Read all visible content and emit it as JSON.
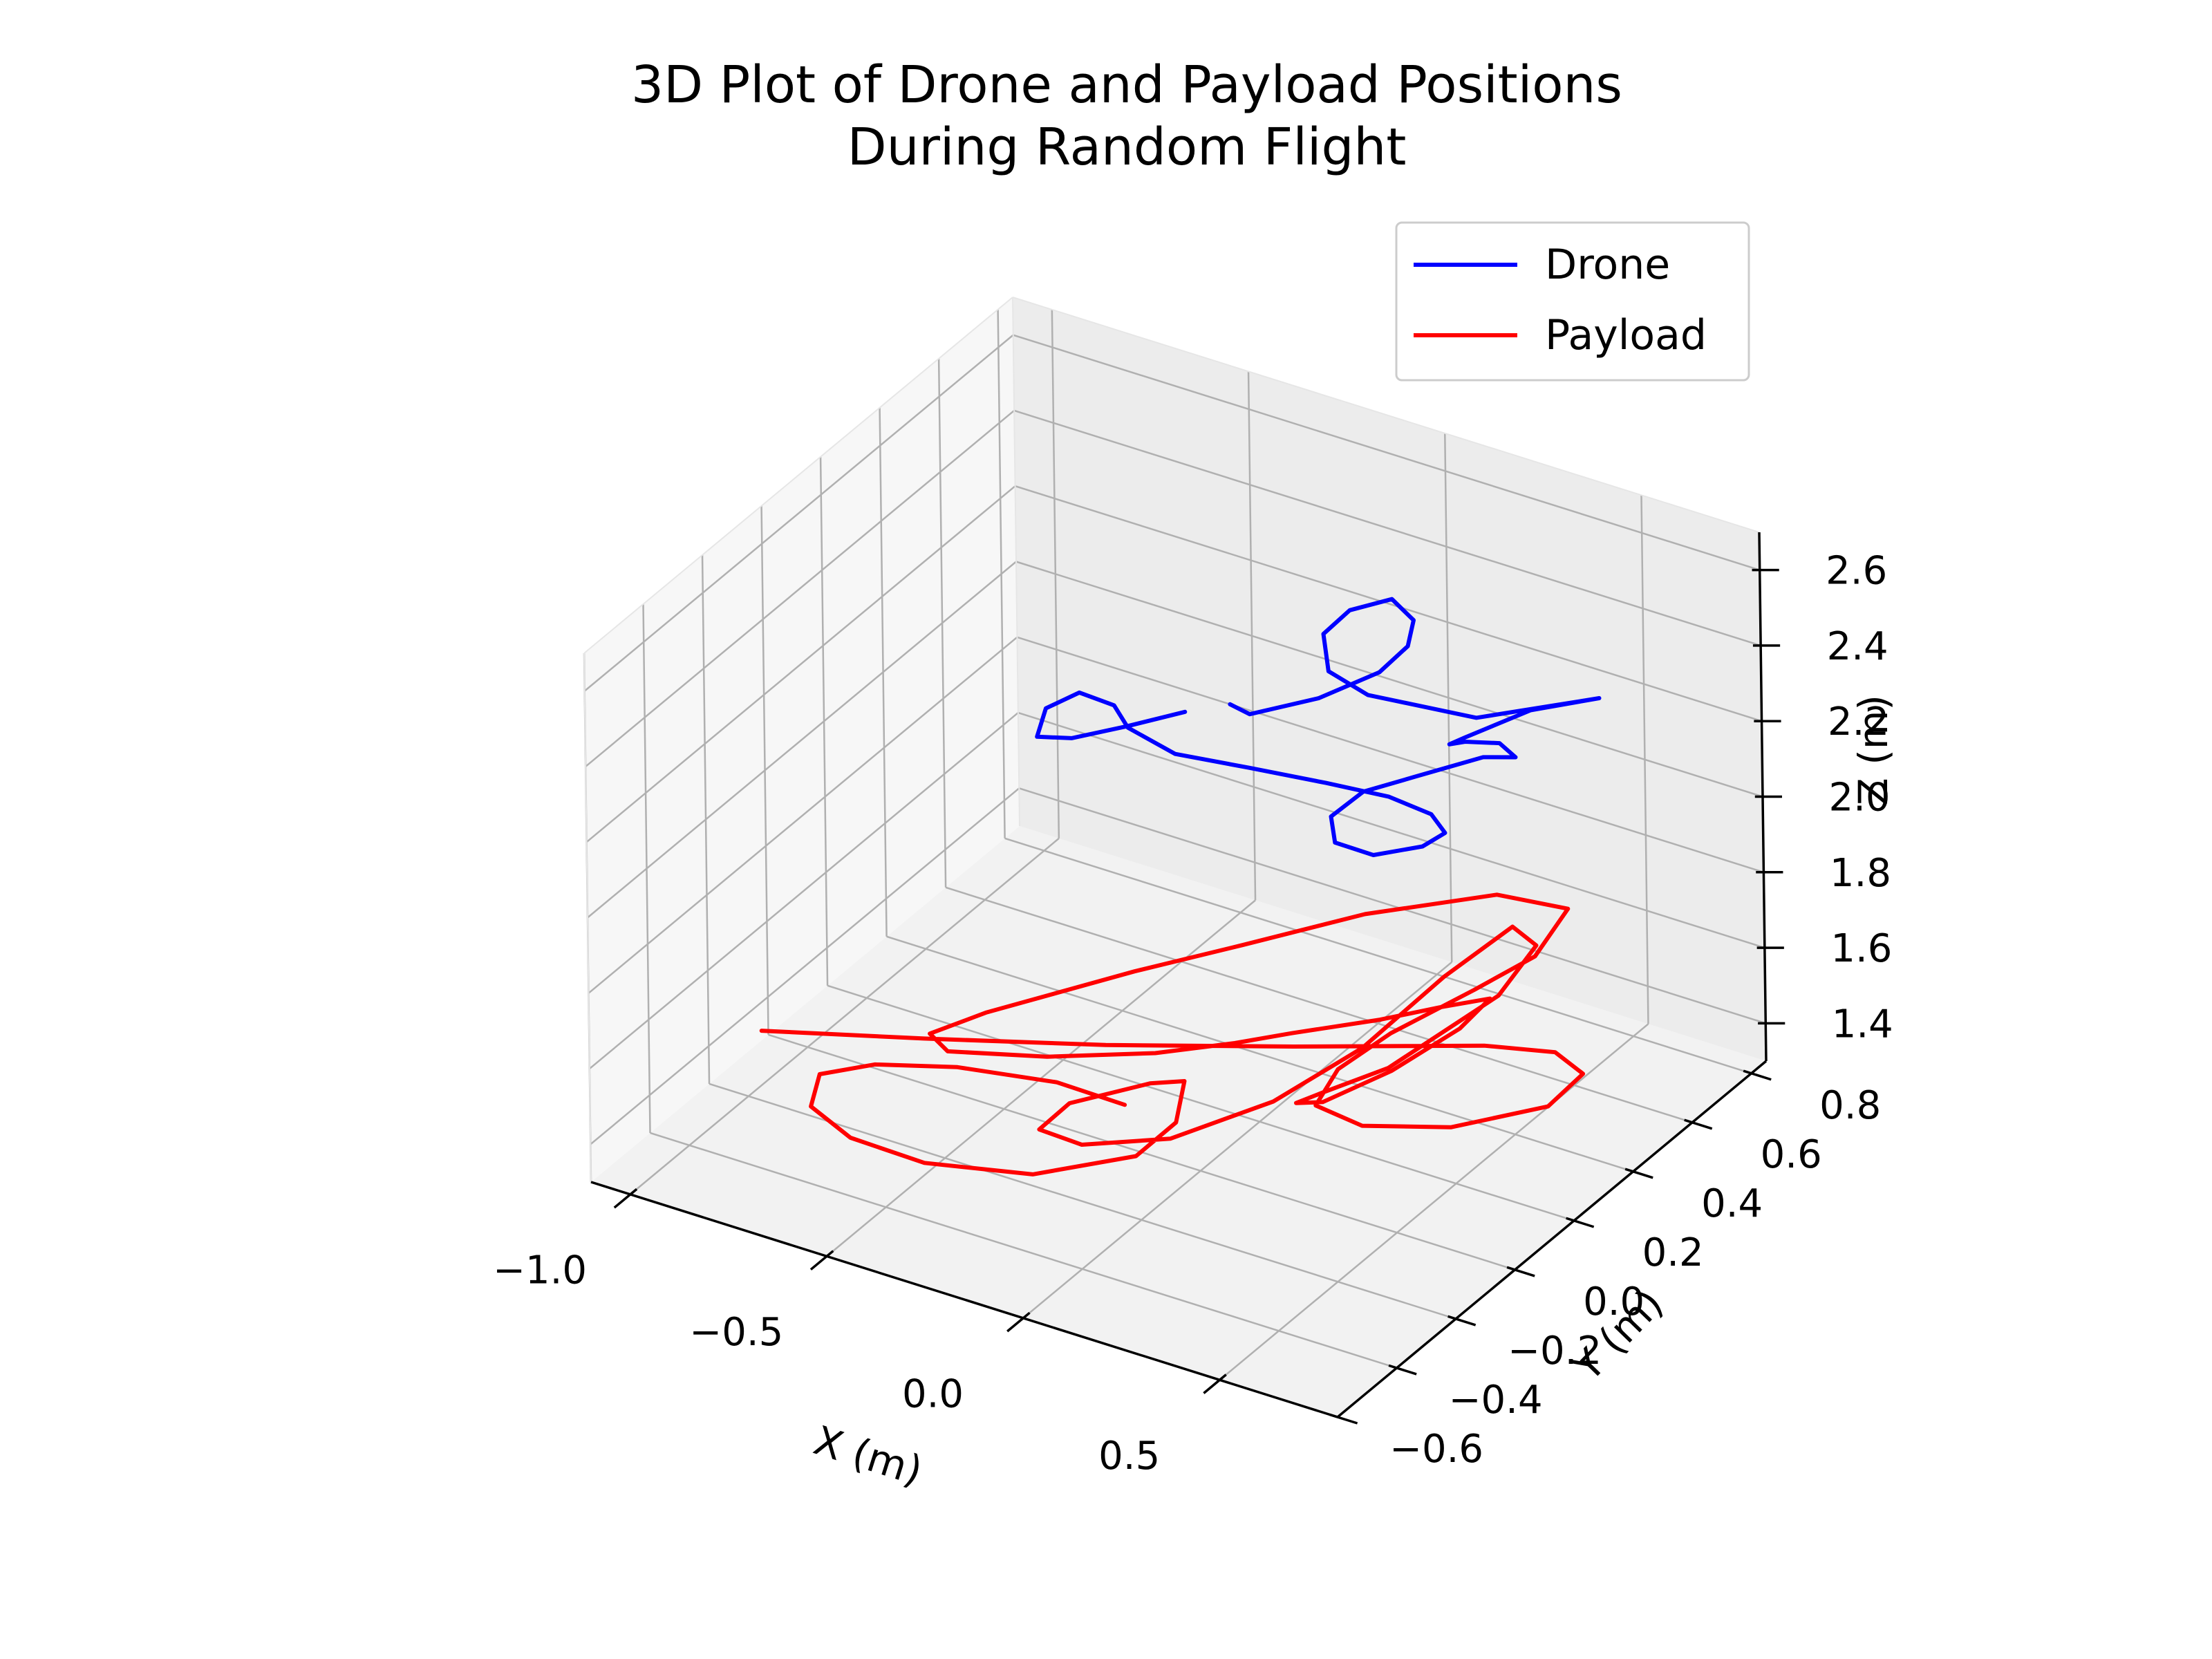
{
  "chart_data": {
    "type": "line",
    "projection": "3d",
    "title": "3D Plot of Drone and Payload Positions\nDuring Random Flight",
    "title_lines": [
      "3D Plot of Drone and Payload Positions",
      "During Random Flight"
    ],
    "xlabel": "X (m)",
    "ylabel": "Y (m)",
    "zlabel": "Z (m)",
    "xlim": [
      -1.1,
      0.8
    ],
    "ylim": [
      -0.6,
      0.85
    ],
    "zlim": [
      1.3,
      2.7
    ],
    "x_ticks": [
      -1.0,
      -0.5,
      0.0,
      0.5
    ],
    "x_tick_labels": [
      "−1.0",
      "−0.5",
      "0.0",
      "0.5"
    ],
    "y_ticks": [
      -0.6,
      -0.4,
      -0.2,
      0.0,
      0.2,
      0.4,
      0.6,
      0.8
    ],
    "y_tick_labels": [
      "−0.6",
      "−0.4",
      "−0.2",
      "0.0",
      "0.2",
      "0.4",
      "0.6",
      "0.8"
    ],
    "z_ticks": [
      1.4,
      1.6,
      1.8,
      2.0,
      2.2,
      2.4,
      2.6
    ],
    "z_tick_labels": [
      "1.4",
      "1.6",
      "1.8",
      "2.0",
      "2.2",
      "2.4",
      "2.6"
    ],
    "grid": true,
    "legend_position": "top-right",
    "series": [
      {
        "name": "Drone",
        "color": "#0000ff",
        "points": [
          [
            -0.2,
            0.23,
            2.3
          ],
          [
            -0.25,
            0.1,
            2.33
          ],
          [
            -0.3,
            -0.02,
            2.36
          ],
          [
            -0.35,
            -0.07,
            2.38
          ],
          [
            -0.38,
            0.0,
            2.4
          ],
          [
            -0.37,
            0.1,
            2.38
          ],
          [
            -0.32,
            0.15,
            2.33
          ],
          [
            -0.27,
            0.13,
            2.3
          ],
          [
            -0.15,
            0.13,
            2.27
          ],
          [
            0.0,
            0.18,
            2.25
          ],
          [
            0.15,
            0.24,
            2.22
          ],
          [
            0.28,
            0.28,
            2.2
          ],
          [
            0.38,
            0.29,
            2.18
          ],
          [
            0.43,
            0.27,
            2.16
          ],
          [
            0.41,
            0.22,
            2.15
          ],
          [
            0.33,
            0.16,
            2.14
          ],
          [
            0.24,
            0.15,
            2.15
          ],
          [
            0.2,
            0.19,
            2.18
          ],
          [
            0.23,
            0.26,
            2.21
          ],
          [
            0.3,
            0.34,
            2.22
          ],
          [
            0.4,
            0.44,
            2.24
          ],
          [
            0.46,
            0.47,
            2.24
          ],
          [
            0.45,
            0.43,
            2.3
          ],
          [
            0.4,
            0.38,
            2.32
          ],
          [
            0.36,
            0.38,
            2.3
          ],
          [
            0.34,
            0.46,
            2.26
          ],
          [
            0.4,
            0.6,
            2.26
          ],
          [
            0.5,
            0.7,
            2.26
          ],
          [
            0.3,
            0.55,
            2.24
          ],
          [
            0.1,
            0.45,
            2.3
          ],
          [
            0.0,
            0.45,
            2.33
          ],
          [
            -0.05,
            0.5,
            2.38
          ],
          [
            -0.02,
            0.55,
            2.42
          ],
          [
            0.05,
            0.6,
            2.44
          ],
          [
            0.12,
            0.58,
            2.42
          ],
          [
            0.15,
            0.52,
            2.4
          ],
          [
            0.13,
            0.45,
            2.37
          ],
          [
            0.05,
            0.35,
            2.34
          ],
          [
            -0.05,
            0.25,
            2.33
          ],
          [
            -0.1,
            0.25,
            2.34
          ]
        ]
      },
      {
        "name": "Payload",
        "color": "#ff0000",
        "points": [
          [
            -0.85,
            -0.35,
            1.62
          ],
          [
            -0.55,
            -0.2,
            1.6
          ],
          [
            -0.2,
            -0.05,
            1.6
          ],
          [
            0.15,
            0.12,
            1.6
          ],
          [
            0.5,
            0.3,
            1.6
          ],
          [
            0.62,
            0.38,
            1.57
          ],
          [
            0.66,
            0.42,
            1.5
          ],
          [
            0.6,
            0.38,
            1.42
          ],
          [
            0.45,
            0.25,
            1.4
          ],
          [
            0.3,
            0.15,
            1.42
          ],
          [
            0.22,
            0.1,
            1.48
          ],
          [
            0.24,
            0.15,
            1.55
          ],
          [
            0.3,
            0.25,
            1.6
          ],
          [
            0.4,
            0.4,
            1.65
          ],
          [
            0.48,
            0.5,
            1.7
          ],
          [
            0.52,
            0.56,
            1.8
          ],
          [
            0.4,
            0.48,
            1.85
          ],
          [
            0.2,
            0.3,
            1.85
          ],
          [
            0.0,
            0.15,
            1.8
          ],
          [
            -0.2,
            0.05,
            1.73
          ],
          [
            -0.45,
            -0.12,
            1.65
          ],
          [
            -0.55,
            -0.18,
            1.6
          ],
          [
            -0.52,
            -0.16,
            1.55
          ],
          [
            -0.35,
            -0.05,
            1.52
          ],
          [
            -0.15,
            0.05,
            1.53
          ],
          [
            0.0,
            0.12,
            1.56
          ],
          [
            0.1,
            0.18,
            1.58
          ],
          [
            0.25,
            0.28,
            1.6
          ],
          [
            0.35,
            0.35,
            1.62
          ],
          [
            0.44,
            0.4,
            1.64
          ],
          [
            0.4,
            0.35,
            1.58
          ],
          [
            0.3,
            0.25,
            1.5
          ],
          [
            0.2,
            0.15,
            1.45
          ],
          [
            0.17,
            0.1,
            1.47
          ],
          [
            0.22,
            0.12,
            1.5
          ],
          [
            0.33,
            0.2,
            1.55
          ],
          [
            0.5,
            0.35,
            1.7
          ],
          [
            0.56,
            0.4,
            1.82
          ],
          [
            0.5,
            0.4,
            1.85
          ],
          [
            0.4,
            0.3,
            1.75
          ],
          [
            0.28,
            0.18,
            1.6
          ],
          [
            0.15,
            0.05,
            1.5
          ],
          [
            0.0,
            -0.1,
            1.45
          ],
          [
            -0.15,
            -0.2,
            1.45
          ],
          [
            -0.22,
            -0.25,
            1.5
          ],
          [
            -0.18,
            -0.2,
            1.55
          ],
          [
            -0.05,
            -0.1,
            1.58
          ],
          [
            0.0,
            -0.05,
            1.57
          ],
          [
            0.0,
            -0.08,
            1.48
          ],
          [
            -0.05,
            -0.15,
            1.42
          ],
          [
            -0.2,
            -0.3,
            1.42
          ],
          [
            -0.4,
            -0.4,
            1.45
          ],
          [
            -0.55,
            -0.45,
            1.5
          ],
          [
            -0.65,
            -0.45,
            1.55
          ],
          [
            -0.68,
            -0.38,
            1.58
          ],
          [
            -0.6,
            -0.3,
            1.58
          ],
          [
            -0.45,
            -0.22,
            1.57
          ],
          [
            -0.25,
            -0.15,
            1.55
          ],
          [
            -0.1,
            -0.12,
            1.52
          ]
        ]
      }
    ]
  }
}
